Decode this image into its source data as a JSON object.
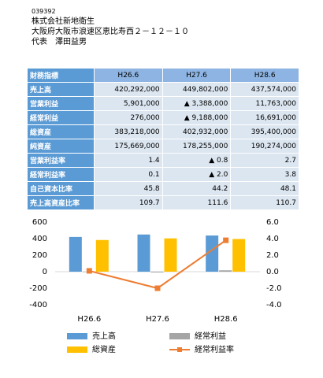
{
  "header": {
    "code": "039392",
    "company": "株式会社新地衛生",
    "address": "大阪府大阪市浪速区恵比寿西２－１２－１０",
    "representative": "代表　澤田益男"
  },
  "table": {
    "columns": [
      "財務指標",
      "H26.6",
      "H27.6",
      "H28.6"
    ],
    "rows": [
      [
        "売上高",
        "420,292,000",
        "449,802,000",
        "437,574,000"
      ],
      [
        "営業利益",
        "5,901,000",
        "▲ 3,388,000",
        "11,763,000"
      ],
      [
        "経常利益",
        "276,000",
        "▲ 9,188,000",
        "16,691,000"
      ],
      [
        "総資産",
        "383,218,000",
        "402,932,000",
        "395,400,000"
      ],
      [
        "純資産",
        "175,669,000",
        "178,255,000",
        "190,274,000"
      ],
      [
        "営業利益率",
        "1.4",
        "▲ 0.8",
        "2.7"
      ],
      [
        "経常利益率",
        "0.1",
        "▲ 2.0",
        "3.8"
      ],
      [
        "自己資本比率",
        "45.8",
        "44.2",
        "48.1"
      ],
      [
        "売上高資産比率",
        "109.7",
        "111.6",
        "110.7"
      ]
    ]
  },
  "chart_data": {
    "type": "bar",
    "categories": [
      "H26.6",
      "H27.6",
      "H28.6"
    ],
    "series": [
      {
        "name": "売上高",
        "color": "#5b9bd5",
        "values": [
          420.3,
          449.8,
          437.6
        ]
      },
      {
        "name": "経常利益",
        "color": "#a5a5a5",
        "values": [
          0.3,
          -9.2,
          16.7
        ]
      },
      {
        "name": "総資産",
        "color": "#ffc000",
        "values": [
          383.2,
          402.9,
          395.4
        ]
      },
      {
        "name": "経常利益率",
        "color": "#ed7d31",
        "type": "line",
        "axis": "y2",
        "values": [
          0.1,
          -2.0,
          3.8
        ]
      }
    ],
    "ylim": [
      -400,
      600
    ],
    "yticks": [
      -400,
      -200,
      0,
      200,
      400,
      600
    ],
    "y2lim": [
      -4,
      6
    ],
    "y2ticks": [
      {
        "value": -4,
        "label": "-4.0"
      },
      {
        "value": -2,
        "label": "-2.0"
      },
      {
        "value": 0,
        "label": "0.0"
      },
      {
        "value": 2,
        "label": "2.0"
      },
      {
        "value": 4,
        "label": "4.0"
      },
      {
        "value": 6,
        "label": "6.0"
      }
    ]
  }
}
